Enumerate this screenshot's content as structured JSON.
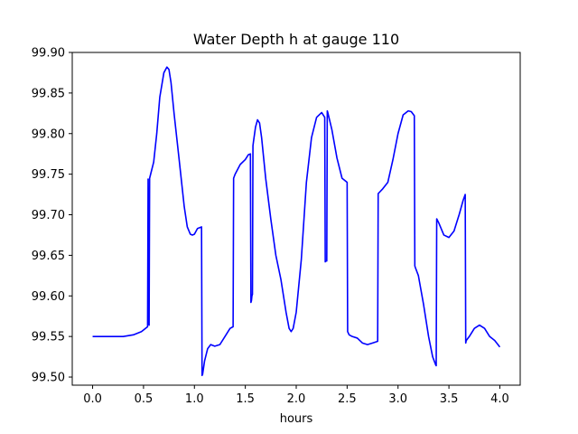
{
  "chart_data": {
    "type": "line",
    "title": "Water Depth h at gauge 110",
    "xlabel": "hours",
    "ylabel": "",
    "xlim": [
      -0.2,
      4.2
    ],
    "ylim": [
      99.49,
      99.9
    ],
    "xticks": [
      0.0,
      0.5,
      1.0,
      1.5,
      2.0,
      2.5,
      3.0,
      3.5,
      4.0
    ],
    "xtick_labels": [
      "0.0",
      "0.5",
      "1.0",
      "1.5",
      "2.0",
      "2.5",
      "3.0",
      "3.5",
      "4.0"
    ],
    "yticks": [
      99.5,
      99.55,
      99.6,
      99.65,
      99.7,
      99.75,
      99.8,
      99.85,
      99.9
    ],
    "ytick_labels": [
      "99.50",
      "99.55",
      "99.60",
      "99.65",
      "99.70",
      "99.75",
      "99.80",
      "99.85",
      "99.90"
    ],
    "grid": false,
    "series": [
      {
        "color": "#0000ff",
        "x": [
          0.0,
          0.3,
          0.4,
          0.48,
          0.54,
          0.545,
          0.55,
          0.555,
          0.56,
          0.57,
          0.6,
          0.63,
          0.66,
          0.7,
          0.73,
          0.75,
          0.77,
          0.8,
          0.85,
          0.9,
          0.93,
          0.96,
          0.98,
          1.0,
          1.03,
          1.07,
          1.075,
          1.08,
          1.1,
          1.13,
          1.16,
          1.2,
          1.25,
          1.3,
          1.35,
          1.38,
          1.385,
          1.4,
          1.45,
          1.5,
          1.53,
          1.55,
          1.555,
          1.56,
          1.565,
          1.57,
          1.575,
          1.58,
          1.6,
          1.62,
          1.64,
          1.66,
          1.7,
          1.75,
          1.8,
          1.85,
          1.9,
          1.93,
          1.95,
          1.97,
          2.0,
          2.05,
          2.1,
          2.15,
          2.2,
          2.25,
          2.28,
          2.285,
          2.29,
          2.3,
          2.305,
          2.31,
          2.35,
          2.4,
          2.45,
          2.5,
          2.505,
          2.52,
          2.55,
          2.6,
          2.65,
          2.7,
          2.75,
          2.8,
          2.805,
          2.82,
          2.85,
          2.9,
          2.95,
          3.0,
          3.05,
          3.1,
          3.13,
          3.16,
          3.165,
          3.17,
          3.2,
          3.25,
          3.3,
          3.34,
          3.37,
          3.375,
          3.38,
          3.4,
          3.45,
          3.5,
          3.55,
          3.6,
          3.64,
          3.66,
          3.665,
          3.67,
          3.7,
          3.75,
          3.8,
          3.85,
          3.9,
          3.95,
          4.0
        ],
        "y": [
          99.55,
          99.55,
          99.552,
          99.556,
          99.562,
          99.744,
          99.566,
          99.564,
          99.745,
          99.75,
          99.765,
          99.8,
          99.845,
          99.875,
          99.882,
          99.879,
          99.863,
          99.825,
          99.768,
          99.71,
          99.685,
          99.676,
          99.675,
          99.676,
          99.683,
          99.685,
          99.502,
          99.503,
          99.52,
          99.535,
          99.54,
          99.538,
          99.54,
          99.55,
          99.56,
          99.562,
          99.745,
          99.75,
          99.762,
          99.768,
          99.774,
          99.775,
          99.592,
          99.594,
          99.6,
          99.602,
          99.785,
          99.79,
          99.808,
          99.817,
          99.813,
          99.795,
          99.745,
          99.695,
          99.65,
          99.62,
          99.58,
          99.56,
          99.556,
          99.56,
          99.58,
          99.645,
          99.74,
          99.795,
          99.82,
          99.826,
          99.82,
          99.642,
          99.643,
          99.643,
          99.828,
          99.826,
          99.805,
          99.77,
          99.745,
          99.74,
          99.556,
          99.552,
          99.55,
          99.548,
          99.542,
          99.54,
          99.542,
          99.544,
          99.726,
          99.728,
          99.732,
          99.74,
          99.768,
          99.8,
          99.823,
          99.828,
          99.827,
          99.822,
          99.637,
          99.635,
          99.625,
          99.59,
          99.55,
          99.525,
          99.515,
          99.514,
          99.695,
          99.69,
          99.675,
          99.672,
          99.68,
          99.7,
          99.718,
          99.725,
          99.542,
          99.545,
          99.55,
          99.56,
          99.564,
          99.56,
          99.55,
          99.545,
          99.537
        ]
      }
    ]
  }
}
